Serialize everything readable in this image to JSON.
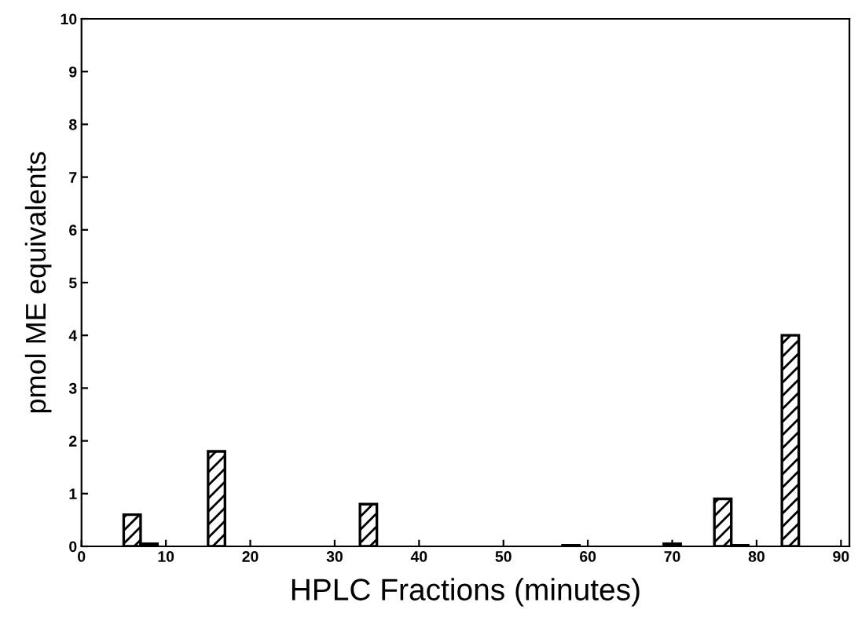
{
  "chart_data": {
    "type": "bar",
    "xlabel": "HPLC Fractions (minutes)",
    "ylabel": "pmol ME equivalents",
    "x": [
      6,
      8,
      16,
      34,
      58,
      70,
      76,
      78,
      84
    ],
    "values": [
      0.6,
      0.05,
      1.8,
      0.8,
      0.02,
      0.05,
      0.9,
      0.02,
      4.0
    ],
    "color": "#000000",
    "xlim": [
      0,
      91
    ],
    "xticks": [
      0,
      10,
      20,
      30,
      40,
      50,
      60,
      70,
      80,
      90
    ],
    "ylim": [
      0,
      10
    ],
    "yticks": [
      0,
      1,
      2,
      3,
      4,
      5,
      6,
      7,
      8,
      9,
      10
    ],
    "grid": false
  }
}
